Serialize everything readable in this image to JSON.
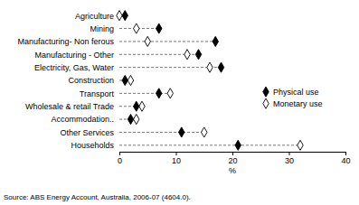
{
  "chart_data": {
    "type": "dot",
    "orientation": "horizontal",
    "categories": [
      "Agriculture",
      "Mining",
      "Manufacturing- Non ferous",
      "Manufacturing - Other",
      "Electricity, Gas, Water",
      "Construction",
      "Transport",
      "Wholesale & retail Trade",
      "Accommodation..",
      "Other Services",
      "Households"
    ],
    "series": [
      {
        "name": "Physical use",
        "color": "#000000",
        "marker": "diamond",
        "values": [
          1,
          7,
          17,
          14,
          18,
          1,
          7,
          3,
          2,
          11,
          21
        ]
      },
      {
        "name": "Monetary use",
        "color": "#000000",
        "marker": "open-diamond",
        "values": [
          0,
          3,
          5,
          12,
          16,
          2,
          9,
          4,
          3,
          15,
          32
        ]
      }
    ],
    "xlim": [
      0,
      40
    ],
    "xticks": [
      0,
      10,
      20,
      30,
      40
    ],
    "xlabel": "%",
    "line_style": "dashed",
    "grid": false,
    "legend": "right",
    "source": "Source: ABS Energy Account, Australia, 2006-07 (4604.0)."
  }
}
